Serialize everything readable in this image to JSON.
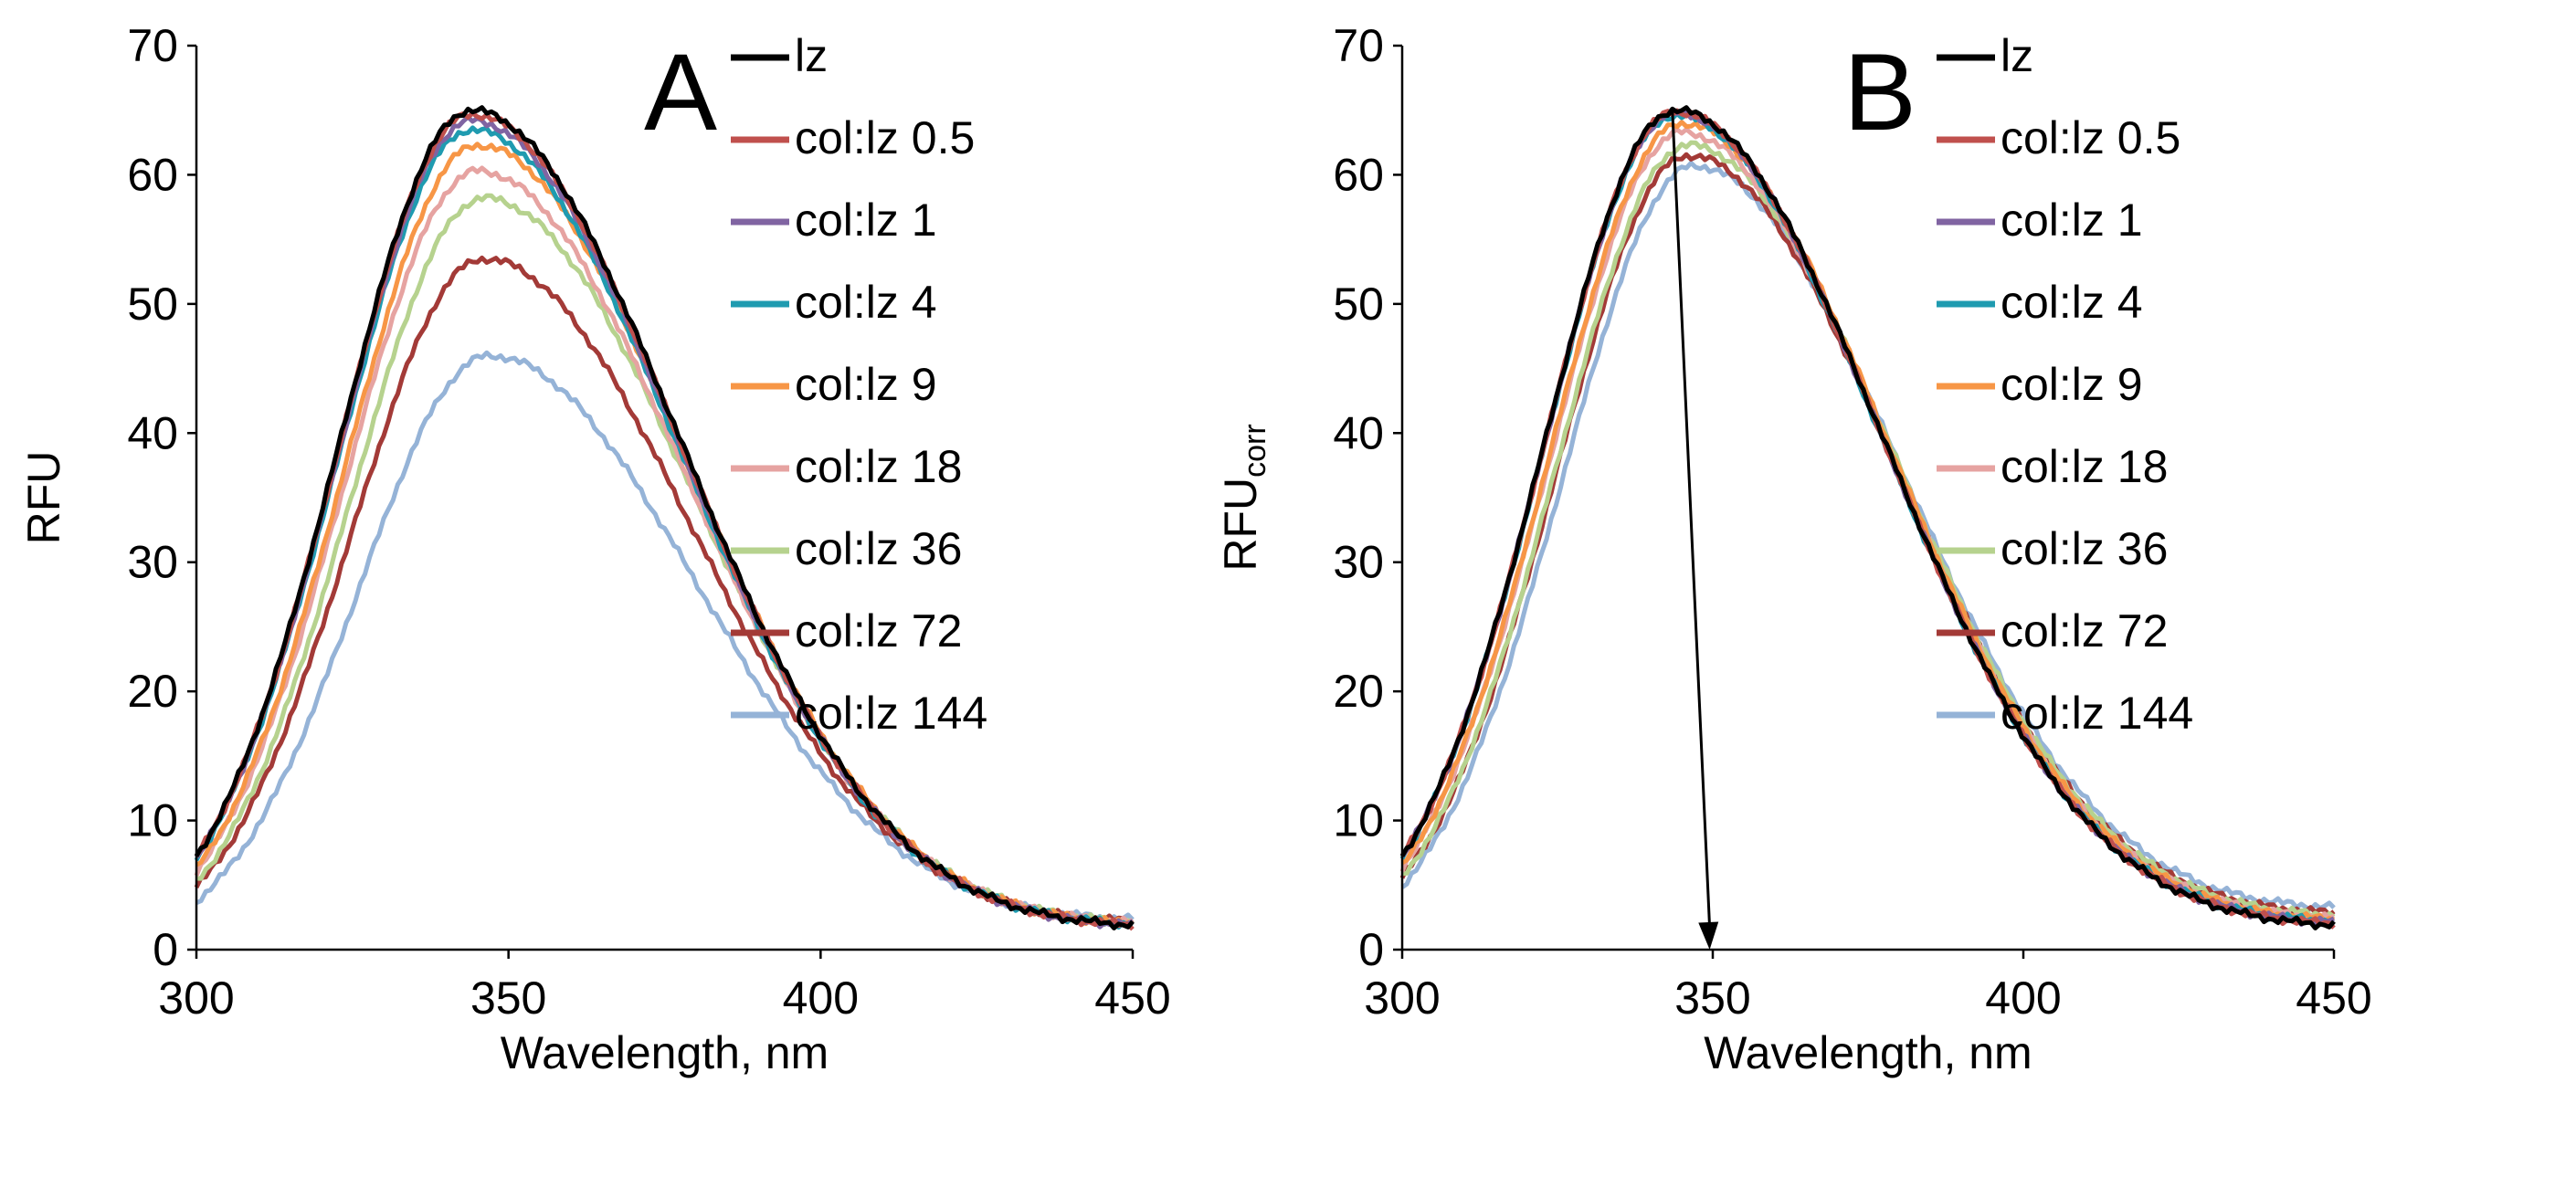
{
  "figure": {
    "background": "#ffffff",
    "axis_color": "#000000",
    "series_colors": {
      "lz": "#000000",
      "col:lz 0.5": "#c0504d",
      "col:lz 1": "#8064a2",
      "col:lz 4": "#1f9bb0",
      "col:lz 9": "#f79646",
      "col:lz 18": "#e6a3a1",
      "col:lz 36": "#b6d28e",
      "col:lz 72": "#a33a37",
      "col:lz 144": "#95b3d7"
    }
  },
  "chart_data": [
    {
      "type": "line",
      "panel": "A",
      "xlabel": "Wavelength,  nm",
      "ylabel": "RFU",
      "xlim": [
        300,
        450
      ],
      "ylim": [
        0,
        70
      ],
      "xticks": [
        300,
        350,
        400,
        450
      ],
      "yticks": [
        0,
        10,
        20,
        30,
        40,
        50,
        60,
        70
      ],
      "grid": false,
      "legend_position": "top-right",
      "series": [
        {
          "name": "lz",
          "peak_x": 344,
          "peak_y": 65.0,
          "end_y": 1.5
        },
        {
          "name": "col:lz 0.5",
          "peak_x": 344,
          "peak_y": 64.7,
          "end_y": 1.5
        },
        {
          "name": "col:lz 1",
          "peak_x": 344,
          "peak_y": 64.2,
          "end_y": 1.5
        },
        {
          "name": "col:lz 4",
          "peak_x": 344,
          "peak_y": 63.5,
          "end_y": 1.6
        },
        {
          "name": "col:lz 9",
          "peak_x": 345,
          "peak_y": 62.3,
          "end_y": 1.6
        },
        {
          "name": "col:lz 18",
          "peak_x": 345,
          "peak_y": 60.3,
          "end_y": 1.7
        },
        {
          "name": "col:lz 36",
          "peak_x": 346,
          "peak_y": 58.2,
          "end_y": 1.7
        },
        {
          "name": "col:lz 72",
          "peak_x": 346,
          "peak_y": 53.5,
          "end_y": 1.8
        },
        {
          "name": "col:lz 144",
          "peak_x": 347,
          "peak_y": 46.0,
          "end_y": 2.0
        }
      ]
    },
    {
      "type": "line",
      "panel": "B",
      "xlabel": "Wavelength,  nm",
      "ylabel": "RFU",
      "ylabel_subscript": "corr",
      "xlim": [
        300,
        450
      ],
      "ylim": [
        0,
        70
      ],
      "xticks": [
        300,
        350,
        400,
        450
      ],
      "yticks": [
        0,
        10,
        20,
        30,
        40,
        50,
        60,
        70
      ],
      "grid": false,
      "legend_position": "top-right",
      "annotation": {
        "type": "arrow",
        "from": [
          343.5,
          65.0
        ],
        "to": [
          349.5,
          0
        ]
      },
      "series": [
        {
          "name": "lz",
          "peak_x": 344,
          "peak_y": 65.0,
          "end_y": 1.5
        },
        {
          "name": "col:lz 0.5",
          "peak_x": 344,
          "peak_y": 64.9,
          "end_y": 1.6
        },
        {
          "name": "col:lz 1",
          "peak_x": 344,
          "peak_y": 64.8,
          "end_y": 1.7
        },
        {
          "name": "col:lz 4",
          "peak_x": 344,
          "peak_y": 64.6,
          "end_y": 1.8
        },
        {
          "name": "col:lz 9",
          "peak_x": 345,
          "peak_y": 64.0,
          "end_y": 1.9
        },
        {
          "name": "col:lz 18",
          "peak_x": 345,
          "peak_y": 63.3,
          "end_y": 2.0
        },
        {
          "name": "col:lz 36",
          "peak_x": 346,
          "peak_y": 62.3,
          "end_y": 2.2
        },
        {
          "name": "col:lz 72",
          "peak_x": 346,
          "peak_y": 61.5,
          "end_y": 2.4
        },
        {
          "name": "col:lz 144",
          "peak_x": 347,
          "peak_y": 60.7,
          "end_y": 2.8
        }
      ]
    }
  ]
}
